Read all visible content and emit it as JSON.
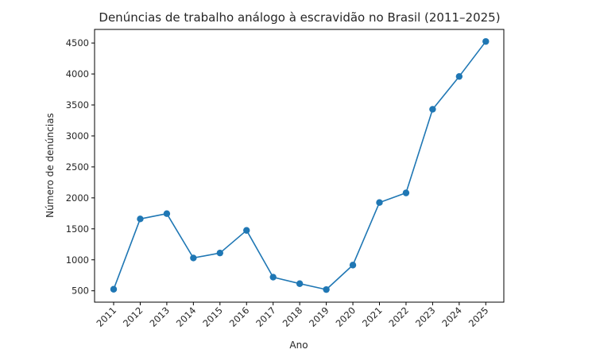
{
  "chart_data": {
    "type": "line",
    "title": "Denúncias de trabalho análogo à escravidão no Brasil (2011–2025)",
    "xlabel": "Ano",
    "ylabel": "Número de denúncias",
    "x": [
      2011,
      2012,
      2013,
      2014,
      2015,
      2016,
      2017,
      2018,
      2019,
      2020,
      2021,
      2022,
      2023,
      2024,
      2025
    ],
    "categories": [
      "2011",
      "2012",
      "2013",
      "2014",
      "2015",
      "2016",
      "2017",
      "2018",
      "2019",
      "2020",
      "2021",
      "2022",
      "2023",
      "2024",
      "2025"
    ],
    "values": [
      525,
      1660,
      1745,
      1030,
      1110,
      1475,
      720,
      615,
      520,
      915,
      1925,
      2080,
      3430,
      3960,
      4525
    ],
    "series": [
      {
        "name": "Denúncias",
        "color": "#1f77b4",
        "marker": "circle",
        "values": [
          525,
          1660,
          1745,
          1030,
          1110,
          1475,
          720,
          615,
          520,
          915,
          1925,
          2080,
          3430,
          3960,
          4525
        ]
      }
    ],
    "yticks": [
      500,
      1000,
      1500,
      2000,
      2500,
      3000,
      3500,
      4000,
      4500
    ],
    "ylim": [
      300,
      4730
    ],
    "xtick_rotation": 45,
    "grid": false,
    "legend": null
  }
}
